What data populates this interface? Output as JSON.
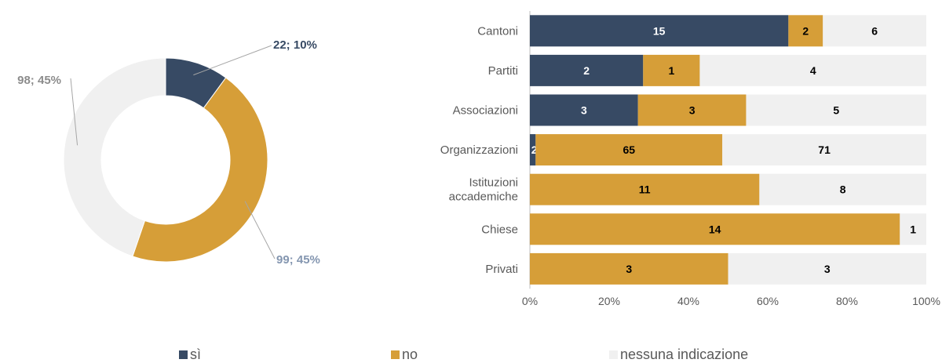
{
  "colors": {
    "si": "#374a64",
    "no": "#d69e38",
    "none": "#f0f0f0"
  },
  "legend": [
    {
      "key": "si",
      "label": "sì"
    },
    {
      "key": "no",
      "label": "no"
    },
    {
      "key": "none",
      "label": "nessuna indicazione"
    }
  ],
  "chart_data": [
    {
      "type": "pie",
      "variant": "donut",
      "slices": [
        {
          "key": "si",
          "value": 22,
          "percent": 10,
          "label": "22; 10%",
          "label_color": "#374a64"
        },
        {
          "key": "no",
          "value": 99,
          "percent": 45,
          "label": "99; 45%",
          "label_color": "#8496b0"
        },
        {
          "key": "none",
          "value": 98,
          "percent": 45,
          "label": "98; 45%",
          "label_color": "#8c8c8c"
        }
      ]
    },
    {
      "type": "bar",
      "orientation": "horizontal",
      "stacked": "percent",
      "categories": [
        "Cantoni",
        "Partiti",
        "Associazioni",
        "Organizzazioni",
        "Istituzioni\naccademiche",
        "Chiese",
        "Privati"
      ],
      "series": [
        {
          "key": "si",
          "name": "sì",
          "values": [
            15,
            2,
            3,
            2,
            0,
            0,
            0
          ]
        },
        {
          "key": "no",
          "name": "no",
          "values": [
            2,
            1,
            3,
            65,
            11,
            14,
            3
          ]
        },
        {
          "key": "none",
          "name": "nessuna indicazione",
          "values": [
            6,
            4,
            5,
            71,
            8,
            1,
            3
          ]
        }
      ],
      "xticks": [
        "0%",
        "20%",
        "40%",
        "60%",
        "80%",
        "100%"
      ],
      "xlim": [
        0,
        100
      ],
      "legend_position": "bottom"
    }
  ]
}
